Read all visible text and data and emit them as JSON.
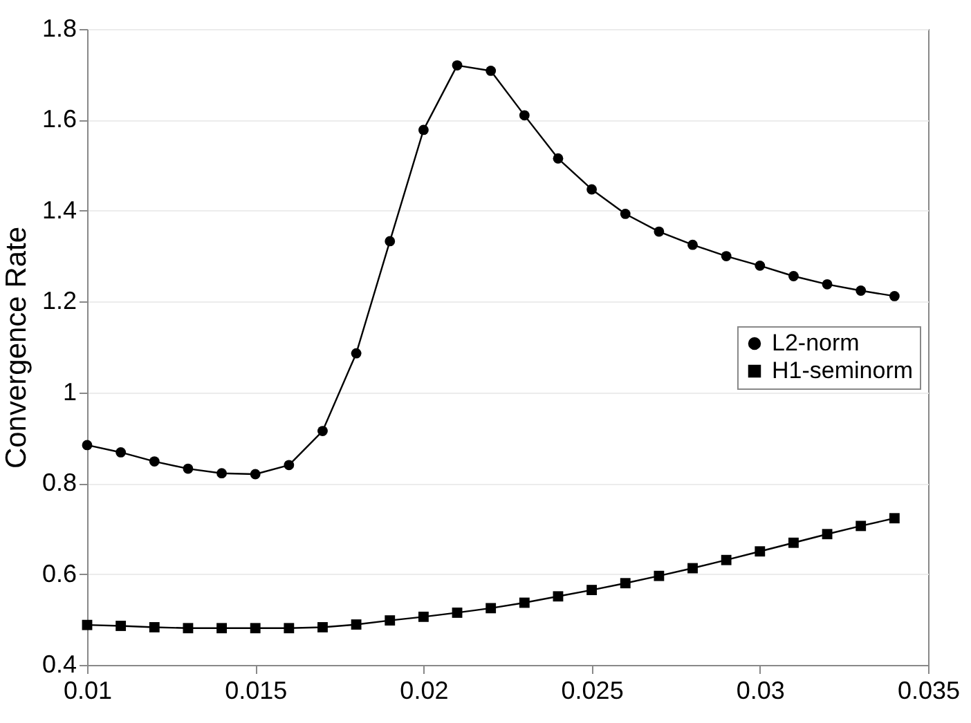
{
  "chart_data": {
    "type": "line",
    "ylabel": "Convergence Rate",
    "x": [
      0.01,
      0.011,
      0.012,
      0.013,
      0.014,
      0.015,
      0.016,
      0.017,
      0.018,
      0.019,
      0.02,
      0.021,
      0.022,
      0.023,
      0.024,
      0.025,
      0.026,
      0.027,
      0.028,
      0.029,
      0.03,
      0.031,
      0.032,
      0.033,
      0.034
    ],
    "series": [
      {
        "name": "L2-norm",
        "color": "#000000",
        "marker": "circle",
        "values": [
          0.884,
          0.868,
          0.848,
          0.832,
          0.822,
          0.82,
          0.84,
          0.915,
          1.086,
          1.333,
          1.578,
          1.72,
          1.708,
          1.61,
          1.515,
          1.447,
          1.393,
          1.354,
          1.325,
          1.3,
          1.279,
          1.256,
          1.238,
          1.224,
          1.212
        ]
      },
      {
        "name": "H1-seminorm",
        "color": "#000000",
        "marker": "square",
        "values": [
          0.488,
          0.486,
          0.483,
          0.481,
          0.481,
          0.481,
          0.481,
          0.483,
          0.489,
          0.498,
          0.506,
          0.515,
          0.525,
          0.537,
          0.551,
          0.565,
          0.58,
          0.596,
          0.613,
          0.631,
          0.65,
          0.669,
          0.688,
          0.706,
          0.723
        ]
      }
    ],
    "xlim": [
      0.01,
      0.035
    ],
    "xticks": [
      0.01,
      0.015,
      0.02,
      0.025,
      0.03,
      0.035
    ],
    "ylim": [
      0.4,
      1.8
    ],
    "yticks": [
      0.4,
      0.6,
      0.8,
      1,
      1.2,
      1.4,
      1.6,
      1.8
    ],
    "grid": "y",
    "legend": "right",
    "line_style": "solid"
  }
}
